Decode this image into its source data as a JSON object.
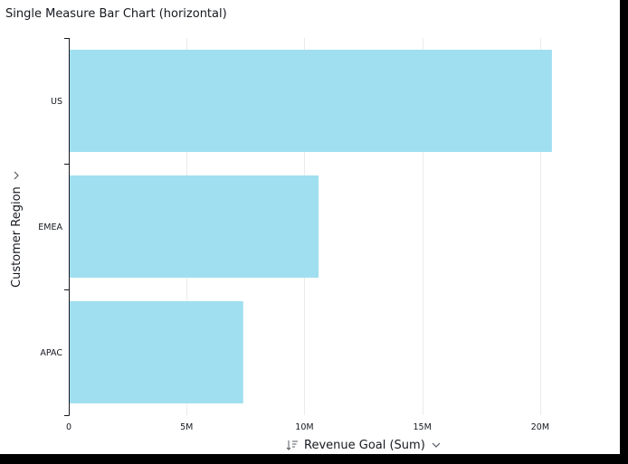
{
  "chart_data": {
    "type": "bar",
    "orientation": "horizontal",
    "title": "Single Measure Bar Chart (horizontal)",
    "xlabel": "Revenue Goal (Sum)",
    "ylabel": "Customer Region",
    "categories": [
      "US",
      "EMEA",
      "APAC"
    ],
    "values": [
      20500000,
      10600000,
      7400000
    ],
    "xlim": [
      0,
      22500000
    ],
    "xticks": [
      0,
      5000000,
      10000000,
      15000000,
      20000000
    ],
    "xtick_labels": [
      "0",
      "5M",
      "10M",
      "15M",
      "20M"
    ],
    "grid": true,
    "bar_color": "#a0dff0"
  }
}
